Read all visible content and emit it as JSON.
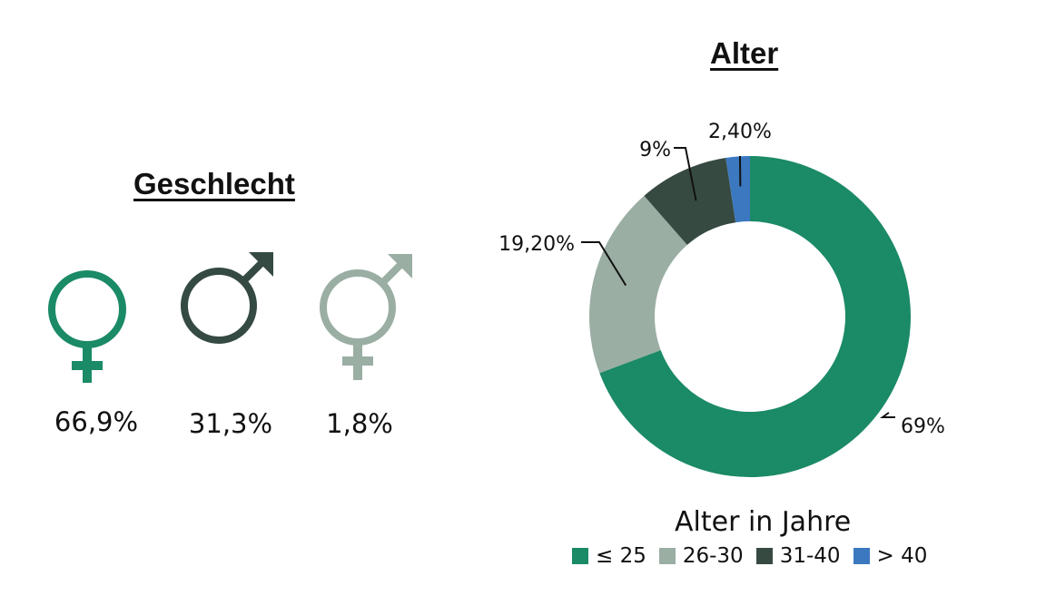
{
  "gender": {
    "title": "Geschlecht",
    "items": [
      {
        "icon": "female-symbol-icon",
        "value": "66,9%",
        "color": "#1b8a66"
      },
      {
        "icon": "male-symbol-icon",
        "value": "31,3%",
        "color": "#344a42"
      },
      {
        "icon": "transgender-symbol-icon",
        "value": "1,8%",
        "color": "#9aaea4"
      }
    ]
  },
  "chart_data": {
    "type": "donut",
    "title": "Alter",
    "legend_title": "Alter in Jahre",
    "legend_position": "bottom",
    "categories": [
      "≤ 25",
      "26-30",
      "31-40",
      "> 40"
    ],
    "values": [
      69,
      19.2,
      9,
      2.4
    ],
    "labels": [
      "69%",
      "19,20%",
      "9%",
      "2,40%"
    ],
    "colors": [
      "#1b8a66",
      "#9aaea4",
      "#374a42",
      "#3c78bf"
    ]
  }
}
